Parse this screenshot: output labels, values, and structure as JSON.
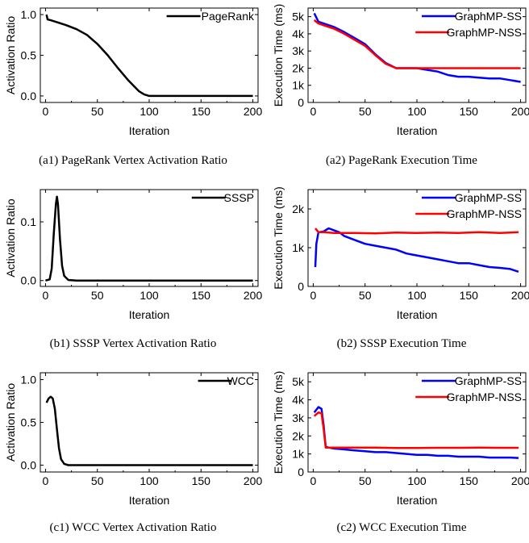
{
  "charts": [
    {
      "id": "a1",
      "caption": "(a1) PageRank Vertex Activation Ratio",
      "chart_data": {
        "type": "line",
        "title": "",
        "xlabel": "Iteration",
        "ylabel": "Activation Ratio",
        "xlim": [
          -5,
          205
        ],
        "ylim": [
          -0.08,
          1.08
        ],
        "xticks": [
          0,
          50,
          100,
          150,
          200
        ],
        "xtick_labels": [
          "0",
          "50",
          "100",
          "150",
          "200"
        ],
        "yticks": [
          0,
          0.5,
          1.0
        ],
        "ytick_labels": [
          "0.0",
          "0.5",
          "1.0"
        ],
        "legend_position": "top-right",
        "series": [
          {
            "name": "PageRank",
            "color": "#000000",
            "points": [
              [
                1,
                1.0
              ],
              [
                2,
                0.94
              ],
              [
                5,
                0.93
              ],
              [
                10,
                0.91
              ],
              [
                20,
                0.87
              ],
              [
                30,
                0.82
              ],
              [
                40,
                0.75
              ],
              [
                50,
                0.64
              ],
              [
                60,
                0.5
              ],
              [
                70,
                0.34
              ],
              [
                80,
                0.19
              ],
              [
                90,
                0.06
              ],
              [
                95,
                0.02
              ],
              [
                100,
                0.0
              ],
              [
                150,
                0.0
              ],
              [
                200,
                0.0
              ]
            ]
          }
        ]
      }
    },
    {
      "id": "a2",
      "caption": "(a2) PageRank Execution Time",
      "chart_data": {
        "type": "line",
        "title": "",
        "xlabel": "Iteration",
        "ylabel": "Execution Time (ms)",
        "xlim": [
          -5,
          205
        ],
        "ylim": [
          0,
          5500
        ],
        "xticks": [
          0,
          50,
          100,
          150,
          200
        ],
        "xtick_labels": [
          "0",
          "50",
          "100",
          "150",
          "200"
        ],
        "yticks": [
          0,
          1000,
          2000,
          3000,
          4000,
          5000
        ],
        "ytick_labels": [
          "0",
          "1k",
          "2k",
          "3k",
          "4k",
          "5k"
        ],
        "legend_position": "top-right",
        "series": [
          {
            "name": "GraphMP-SS",
            "color": "#0000ff",
            "points": [
              [
                1,
                5200
              ],
              [
                5,
                4700
              ],
              [
                10,
                4600
              ],
              [
                20,
                4400
              ],
              [
                30,
                4100
              ],
              [
                40,
                3750
              ],
              [
                50,
                3400
              ],
              [
                60,
                2800
              ],
              [
                70,
                2300
              ],
              [
                80,
                2000
              ],
              [
                90,
                2000
              ],
              [
                100,
                2000
              ],
              [
                110,
                1900
              ],
              [
                120,
                1800
              ],
              [
                130,
                1600
              ],
              [
                140,
                1500
              ],
              [
                150,
                1500
              ],
              [
                160,
                1450
              ],
              [
                170,
                1400
              ],
              [
                180,
                1400
              ],
              [
                190,
                1300
              ],
              [
                200,
                1200
              ]
            ]
          },
          {
            "name": "GraphMP-NSS",
            "color": "#ff0000",
            "points": [
              [
                1,
                4800
              ],
              [
                5,
                4600
              ],
              [
                10,
                4500
              ],
              [
                20,
                4300
              ],
              [
                30,
                4000
              ],
              [
                40,
                3650
              ],
              [
                50,
                3300
              ],
              [
                60,
                2750
              ],
              [
                70,
                2250
              ],
              [
                80,
                2000
              ],
              [
                90,
                2000
              ],
              [
                100,
                2000
              ],
              [
                120,
                2000
              ],
              [
                140,
                2000
              ],
              [
                160,
                2000
              ],
              [
                180,
                2000
              ],
              [
                200,
                2000
              ]
            ]
          }
        ]
      }
    },
    {
      "id": "b1",
      "caption": "(b1) SSSP Vertex Activation Ratio",
      "chart_data": {
        "type": "line",
        "title": "",
        "xlabel": "Iteration",
        "ylabel": "Activation Ratio",
        "xlim": [
          -5,
          205
        ],
        "ylim": [
          -0.01,
          0.155
        ],
        "xticks": [
          0,
          50,
          100,
          150,
          200
        ],
        "xtick_labels": [
          "0",
          "50",
          "100",
          "150",
          "200"
        ],
        "yticks": [
          0,
          0.1
        ],
        "ytick_labels": [
          "0.0",
          "0.1"
        ],
        "legend_position": "top-right",
        "series": [
          {
            "name": "SSSP",
            "color": "#000000",
            "points": [
              [
                0,
                0.0
              ],
              [
                4,
                0.002
              ],
              [
                6,
                0.02
              ],
              [
                8,
                0.08
              ],
              [
                10,
                0.13
              ],
              [
                11,
                0.143
              ],
              [
                12,
                0.13
              ],
              [
                14,
                0.07
              ],
              [
                16,
                0.025
              ],
              [
                18,
                0.008
              ],
              [
                22,
                0.001
              ],
              [
                30,
                0.0
              ],
              [
                100,
                0.0
              ],
              [
                200,
                0.0
              ]
            ]
          }
        ]
      }
    },
    {
      "id": "b2",
      "caption": "(b2) SSSP Execution Time",
      "chart_data": {
        "type": "line",
        "title": "",
        "xlabel": "Iteration",
        "ylabel": "Execution Time (ms)",
        "xlim": [
          -5,
          205
        ],
        "ylim": [
          0,
          2500
        ],
        "xticks": [
          0,
          50,
          100,
          150,
          200
        ],
        "xtick_labels": [
          "0",
          "50",
          "100",
          "150",
          "200"
        ],
        "yticks": [
          0,
          1000,
          2000
        ],
        "ytick_labels": [
          "0",
          "1k",
          "2k"
        ],
        "legend_position": "top-right",
        "series": [
          {
            "name": "GraphMP-SS",
            "color": "#0000ff",
            "points": [
              [
                2,
                500
              ],
              [
                3,
                1100
              ],
              [
                5,
                1400
              ],
              [
                10,
                1420
              ],
              [
                15,
                1500
              ],
              [
                20,
                1450
              ],
              [
                25,
                1400
              ],
              [
                30,
                1300
              ],
              [
                40,
                1200
              ],
              [
                50,
                1100
              ],
              [
                60,
                1050
              ],
              [
                70,
                1000
              ],
              [
                80,
                950
              ],
              [
                90,
                850
              ],
              [
                100,
                800
              ],
              [
                110,
                750
              ],
              [
                120,
                700
              ],
              [
                130,
                650
              ],
              [
                140,
                600
              ],
              [
                150,
                600
              ],
              [
                160,
                550
              ],
              [
                170,
                500
              ],
              [
                180,
                480
              ],
              [
                190,
                450
              ],
              [
                198,
                380
              ]
            ]
          },
          {
            "name": "GraphMP-NSS",
            "color": "#ff0000",
            "points": [
              [
                2,
                1500
              ],
              [
                5,
                1400
              ],
              [
                10,
                1400
              ],
              [
                20,
                1380
              ],
              [
                40,
                1380
              ],
              [
                60,
                1370
              ],
              [
                80,
                1390
              ],
              [
                100,
                1380
              ],
              [
                120,
                1390
              ],
              [
                140,
                1380
              ],
              [
                160,
                1400
              ],
              [
                180,
                1380
              ],
              [
                198,
                1400
              ]
            ]
          }
        ]
      }
    },
    {
      "id": "c1",
      "caption": "(c1) WCC Vertex Activation Ratio",
      "chart_data": {
        "type": "line",
        "title": "",
        "xlabel": "Iteration",
        "ylabel": "Activation Ratio",
        "xlim": [
          -5,
          205
        ],
        "ylim": [
          -0.08,
          1.08
        ],
        "xticks": [
          0,
          50,
          100,
          150,
          200
        ],
        "xtick_labels": [
          "0",
          "50",
          "100",
          "150",
          "200"
        ],
        "yticks": [
          0,
          0.5,
          1.0
        ],
        "ytick_labels": [
          "0.0",
          "0.5",
          "1.0"
        ],
        "legend_position": "top-right",
        "series": [
          {
            "name": "WCC",
            "color": "#000000",
            "points": [
              [
                1,
                0.73
              ],
              [
                3,
                0.78
              ],
              [
                5,
                0.8
              ],
              [
                7,
                0.78
              ],
              [
                9,
                0.66
              ],
              [
                11,
                0.42
              ],
              [
                13,
                0.2
              ],
              [
                15,
                0.07
              ],
              [
                18,
                0.015
              ],
              [
                22,
                0.0
              ],
              [
                100,
                0.0
              ],
              [
                200,
                0.0
              ]
            ]
          }
        ]
      }
    },
    {
      "id": "c2",
      "caption": "(c2) WCC Execution Time",
      "chart_data": {
        "type": "line",
        "title": "",
        "xlabel": "Iteration",
        "ylabel": "Execution Time (ms)",
        "xlim": [
          -5,
          205
        ],
        "ylim": [
          0,
          5500
        ],
        "xticks": [
          0,
          50,
          100,
          150,
          200
        ],
        "xtick_labels": [
          "0",
          "50",
          "100",
          "150",
          "200"
        ],
        "yticks": [
          0,
          1000,
          2000,
          3000,
          4000,
          5000
        ],
        "ytick_labels": [
          "0",
          "1k",
          "2k",
          "3k",
          "4k",
          "5k"
        ],
        "legend_position": "top-right",
        "series": [
          {
            "name": "GraphMP-SS",
            "color": "#0000ff",
            "points": [
              [
                1,
                3300
              ],
              [
                5,
                3600
              ],
              [
                8,
                3500
              ],
              [
                10,
                2600
              ],
              [
                12,
                1400
              ],
              [
                15,
                1350
              ],
              [
                20,
                1300
              ],
              [
                30,
                1250
              ],
              [
                40,
                1200
              ],
              [
                50,
                1150
              ],
              [
                60,
                1100
              ],
              [
                70,
                1100
              ],
              [
                80,
                1050
              ],
              [
                90,
                1000
              ],
              [
                100,
                950
              ],
              [
                110,
                950
              ],
              [
                120,
                900
              ],
              [
                130,
                900
              ],
              [
                140,
                850
              ],
              [
                150,
                850
              ],
              [
                160,
                850
              ],
              [
                170,
                800
              ],
              [
                180,
                800
              ],
              [
                190,
                800
              ],
              [
                198,
                780
              ]
            ]
          },
          {
            "name": "GraphMP-NSS",
            "color": "#ff0000",
            "points": [
              [
                1,
                3100
              ],
              [
                5,
                3300
              ],
              [
                8,
                3250
              ],
              [
                10,
                2400
              ],
              [
                12,
                1350
              ],
              [
                20,
                1350
              ],
              [
                40,
                1350
              ],
              [
                60,
                1350
              ],
              [
                80,
                1330
              ],
              [
                100,
                1330
              ],
              [
                120,
                1340
              ],
              [
                140,
                1340
              ],
              [
                160,
                1350
              ],
              [
                180,
                1340
              ],
              [
                198,
                1340
              ]
            ]
          }
        ]
      }
    }
  ]
}
